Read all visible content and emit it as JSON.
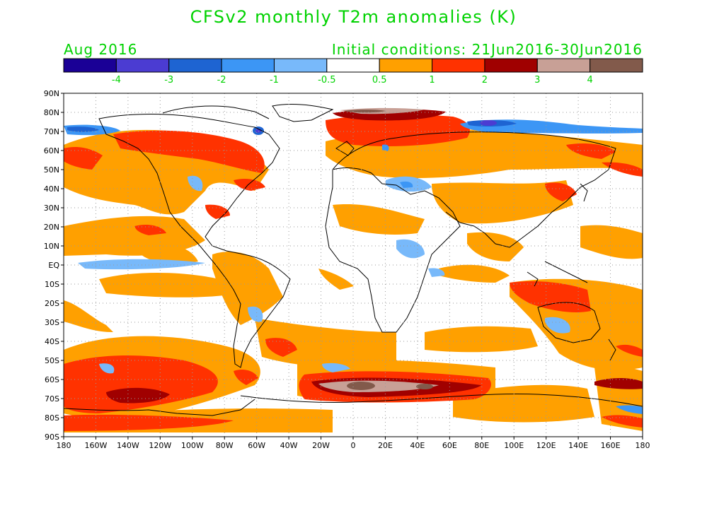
{
  "title": "CFSv2 monthly T2m anomalies (K)",
  "month_label": "Aug 2016",
  "init_label": "Initial conditions: 21Jun2016-30Jun2016",
  "text_color": "#00d200",
  "colorbar": {
    "colors": [
      "#1a0096",
      "#4b3cd2",
      "#1e64d2",
      "#3c96f5",
      "#78b9fa",
      "#ffffff",
      "#ffa000",
      "#ff3200",
      "#a00000",
      "#c8a096",
      "#825a4b"
    ],
    "labels": [
      "-4",
      "-3",
      "-2",
      "-1",
      "-0.5",
      "0.5",
      "1",
      "2",
      "3",
      "4"
    ]
  },
  "lat_labels": [
    "90N",
    "80N",
    "70N",
    "60N",
    "50N",
    "40N",
    "30N",
    "20N",
    "10N",
    "EQ",
    "10S",
    "20S",
    "30S",
    "40S",
    "50S",
    "60S",
    "70S",
    "80S",
    "90S"
  ],
  "lon_labels": [
    "180",
    "160W",
    "140W",
    "120W",
    "100W",
    "80W",
    "60W",
    "40W",
    "20W",
    "0",
    "20E",
    "40E",
    "60E",
    "80E",
    "100E",
    "120E",
    "140E",
    "160E",
    "180"
  ]
}
